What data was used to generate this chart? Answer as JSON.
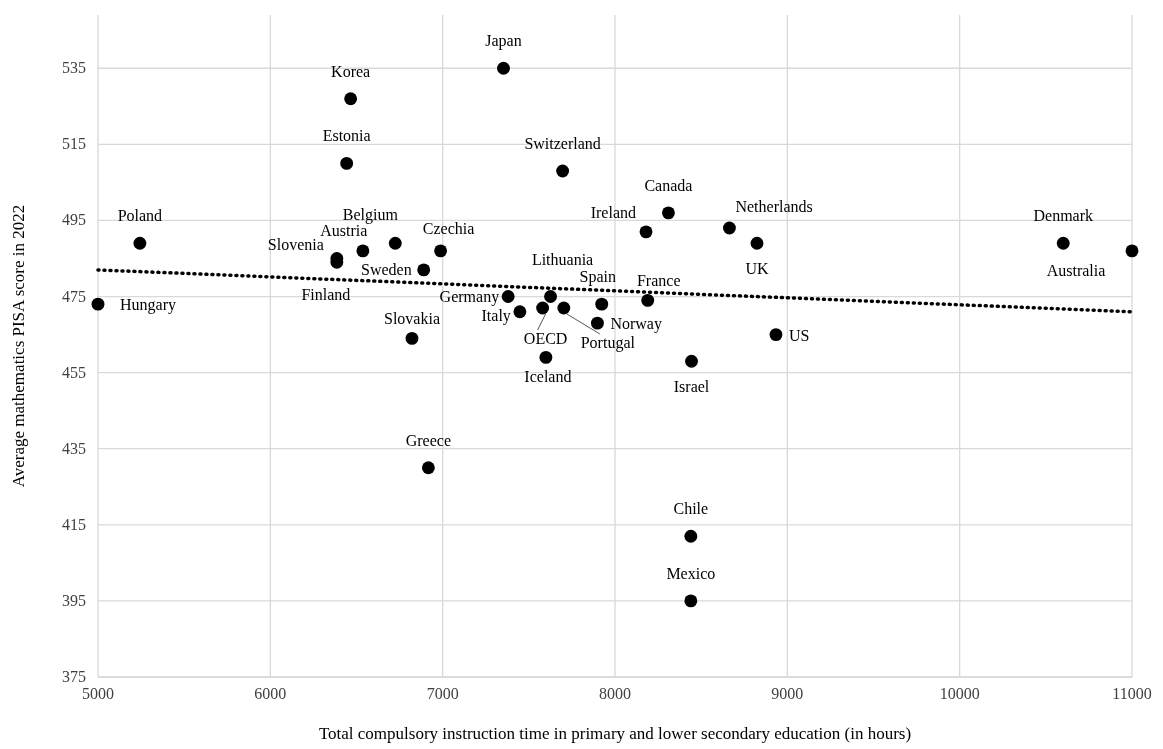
{
  "chart_data": {
    "type": "scatter",
    "xlabel": "Total compulsory instruction time in primary and lower secondary education (in hours)",
    "ylabel": "Average mathematics PISA score in 2022",
    "xlim": [
      5000,
      11000
    ],
    "xticks": [
      5000,
      6000,
      7000,
      8000,
      9000,
      10000,
      11000
    ],
    "ylim": [
      375,
      549
    ],
    "yticks": [
      375,
      395,
      415,
      435,
      455,
      475,
      495,
      515,
      535
    ],
    "grid": true,
    "marker": "circle",
    "series": [
      {
        "name": "Japan",
        "color": "#000000",
        "x": [
          7353
        ],
        "values": [
          535
        ]
      },
      {
        "name": "Korea",
        "color": "#000000",
        "x": [
          6466
        ],
        "values": [
          527
        ]
      },
      {
        "name": "Estonia",
        "color": "#000000",
        "x": [
          6443
        ],
        "values": [
          510
        ]
      },
      {
        "name": "Switzerland",
        "color": "#000000",
        "x": [
          7696
        ],
        "values": [
          508
        ]
      },
      {
        "name": "Canada",
        "color": "#000000",
        "x": [
          8310
        ],
        "values": [
          497
        ]
      },
      {
        "name": "Ireland",
        "color": "#000000",
        "x": [
          8180
        ],
        "values": [
          492
        ]
      },
      {
        "name": "Netherlands",
        "color": "#000000",
        "x": [
          8664
        ],
        "values": [
          493
        ]
      },
      {
        "name": "UK",
        "color": "#000000",
        "x": [
          8824
        ],
        "values": [
          489
        ]
      },
      {
        "name": "Denmark",
        "color": "#000000",
        "x": [
          10601
        ],
        "values": [
          489
        ]
      },
      {
        "name": "Australia",
        "color": "#000000",
        "x": [
          11000
        ],
        "values": [
          487
        ]
      },
      {
        "name": "Poland",
        "color": "#000000",
        "x": [
          5243
        ],
        "values": [
          489
        ]
      },
      {
        "name": "Hungary",
        "color": "#000000",
        "x": [
          5000
        ],
        "values": [
          473
        ]
      },
      {
        "name": "Belgium",
        "color": "#000000",
        "x": [
          6725
        ],
        "values": [
          489
        ]
      },
      {
        "name": "Austria",
        "color": "#000000",
        "x": [
          6537
        ],
        "values": [
          487
        ]
      },
      {
        "name": "Slovenia",
        "color": "#000000",
        "x": [
          6386
        ],
        "values": [
          485
        ]
      },
      {
        "name": "Czechia",
        "color": "#000000",
        "x": [
          6988
        ],
        "values": [
          487
        ]
      },
      {
        "name": "Sweden",
        "color": "#000000",
        "x": [
          6890
        ],
        "values": [
          482
        ]
      },
      {
        "name": "Finland",
        "color": "#000000",
        "x": [
          6386
        ],
        "values": [
          484
        ]
      },
      {
        "name": "Germany",
        "color": "#000000",
        "x": [
          7380
        ],
        "values": [
          475
        ]
      },
      {
        "name": "Lithuania",
        "color": "#000000",
        "x": [
          7626
        ],
        "values": [
          475
        ]
      },
      {
        "name": "Spain",
        "color": "#000000",
        "x": [
          7923
        ],
        "values": [
          473
        ]
      },
      {
        "name": "Norway",
        "color": "#000000",
        "x": [
          7898
        ],
        "values": [
          468
        ]
      },
      {
        "name": "Portugal",
        "color": "#000000",
        "x": [
          7703
        ],
        "values": [
          472
        ]
      },
      {
        "name": "OECD",
        "color": "#000000",
        "x": [
          7580
        ],
        "values": [
          472
        ]
      },
      {
        "name": "Italy",
        "color": "#000000",
        "x": [
          7448
        ],
        "values": [
          471
        ]
      },
      {
        "name": "France",
        "color": "#000000",
        "x": [
          8190
        ],
        "values": [
          474
        ]
      },
      {
        "name": "Slovakia",
        "color": "#000000",
        "x": [
          6822
        ],
        "values": [
          464
        ]
      },
      {
        "name": "Iceland",
        "color": "#000000",
        "x": [
          7599
        ],
        "values": [
          459
        ]
      },
      {
        "name": "Israel",
        "color": "#000000",
        "x": [
          8444
        ],
        "values": [
          458
        ]
      },
      {
        "name": "US",
        "color": "#000000",
        "x": [
          8934
        ],
        "values": [
          465
        ]
      },
      {
        "name": "Greece",
        "color": "#000000",
        "x": [
          6917
        ],
        "values": [
          430
        ]
      },
      {
        "name": "Chile",
        "color": "#000000",
        "x": [
          8440
        ],
        "values": [
          412
        ]
      },
      {
        "name": "Mexico",
        "color": "#000000",
        "x": [
          8440
        ],
        "values": [
          395
        ]
      },
      {
        "type": "line",
        "color": "#000000",
        "line_style": "dotted",
        "marker": "none",
        "x": [
          5000,
          11000
        ],
        "values": [
          482,
          471
        ]
      }
    ]
  }
}
